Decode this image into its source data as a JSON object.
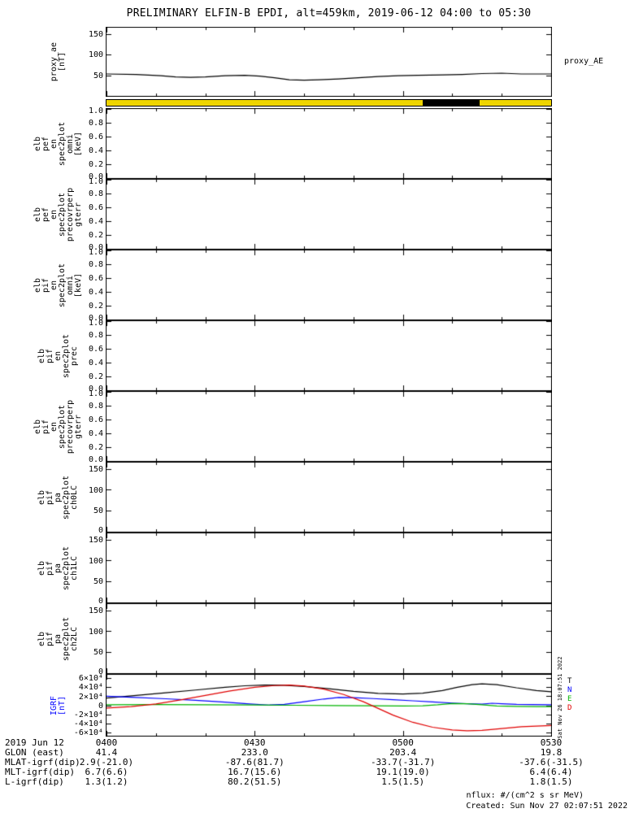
{
  "notes": {
    "nflux": "nflux: #/(cm^2 s sr MeV)",
    "created": "Created: Sun Nov 27 02:07:51 2022",
    "side": "Sat Nov 26 18:07:51 2022"
  },
  "footer": {
    "rows": [
      {
        "label": "2019 Jun 12",
        "values": [
          "0400",
          "0430",
          "0500",
          "0530"
        ]
      },
      {
        "label": "GLON (east)",
        "values": [
          "41.4",
          "233.0",
          "203.4",
          "19.8"
        ]
      },
      {
        "label": "MLAT-igrf(dip)",
        "values": [
          "2.9(-21.0)",
          "-87.6(81.7)",
          "-33.7(-31.7)",
          "-37.6(-31.5)"
        ]
      },
      {
        "label": "MLT-igrf(dip)",
        "values": [
          "6.7(6.6)",
          "16.7(15.6)",
          "19.1(19.0)",
          "6.4(6.4)"
        ]
      },
      {
        "label": "L-igrf(dip)",
        "values": [
          "1.3(1.2)",
          "80.2(51.5)",
          "1.5(1.5)",
          "1.8(1.5)"
        ]
      }
    ]
  },
  "chart_data": {
    "type": "line",
    "title": "PRELIMINARY ELFIN-B EPDI, alt=459km, 2019-06-12 04:00 to 05:30",
    "x_axis": {
      "unit": "minutes from 04:00",
      "range": [
        0,
        90
      ],
      "major_ticks": [
        {
          "t": 0,
          "label": "0400"
        },
        {
          "t": 30,
          "label": "0430"
        },
        {
          "t": 60,
          "label": "0500"
        },
        {
          "t": 90,
          "label": "0530"
        }
      ],
      "minor_step": 10
    },
    "panels": [
      {
        "id": "proxy-ae",
        "ylabel_lines": [
          "proxy_ae",
          "[nT]"
        ],
        "ylabel_color": "#000000",
        "ylim": [
          0,
          165
        ],
        "yticks": [
          {
            "v": 50,
            "label": "50"
          },
          {
            "v": 100,
            "label": "100"
          },
          {
            "v": 150,
            "label": "150"
          }
        ],
        "right_label": "proxy_AE",
        "series": [
          {
            "name": "proxy_AE",
            "color": "#000000",
            "points": [
              [
                0,
                53
              ],
              [
                6,
                52
              ],
              [
                11,
                49
              ],
              [
                14,
                46
              ],
              [
                17,
                45
              ],
              [
                20,
                46
              ],
              [
                24,
                49
              ],
              [
                28,
                50
              ],
              [
                31,
                48
              ],
              [
                34,
                44
              ],
              [
                37,
                39
              ],
              [
                40,
                38
              ],
              [
                43,
                39
              ],
              [
                47,
                41
              ],
              [
                51,
                44
              ],
              [
                55,
                47
              ],
              [
                59,
                49
              ],
              [
                63,
                50
              ],
              [
                68,
                51
              ],
              [
                72,
                52
              ],
              [
                76,
                54
              ],
              [
                80,
                55
              ],
              [
                84,
                53
              ],
              [
                90,
                53
              ]
            ]
          }
        ]
      },
      {
        "id": "status-bar",
        "kind": "strip",
        "fill": "#efd500",
        "segments": [
          {
            "start": 64,
            "end": 75.5,
            "color": "#000000"
          }
        ]
      },
      {
        "id": "elb-pef-en-omni",
        "ylabel_lines": [
          "elb",
          "pef",
          "en",
          "spec2plot",
          "omni",
          "[keV]"
        ],
        "ylim": [
          0,
          1
        ],
        "yticks": [
          {
            "v": 0,
            "label": "0.0"
          },
          {
            "v": 0.2,
            "label": "0.2"
          },
          {
            "v": 0.4,
            "label": "0.4"
          },
          {
            "v": 0.6,
            "label": "0.6"
          },
          {
            "v": 0.8,
            "label": "0.8"
          },
          {
            "v": 1,
            "label": "1.0"
          }
        ],
        "series": []
      },
      {
        "id": "elb-pef-en-precovrperp",
        "ylabel_lines": [
          "elb",
          "pef",
          "en",
          "spec2plot",
          "precovrperp",
          "gterr"
        ],
        "ylim": [
          0,
          1
        ],
        "yticks": [
          {
            "v": 0,
            "label": "0.0"
          },
          {
            "v": 0.2,
            "label": "0.2"
          },
          {
            "v": 0.4,
            "label": "0.4"
          },
          {
            "v": 0.6,
            "label": "0.6"
          },
          {
            "v": 0.8,
            "label": "0.8"
          },
          {
            "v": 1,
            "label": "1.0"
          }
        ],
        "series": []
      },
      {
        "id": "elb-pif-en-omni",
        "ylabel_lines": [
          "elb",
          "pif",
          "en",
          "spec2plot",
          "omni",
          "[keV]"
        ],
        "ylim": [
          0,
          1
        ],
        "yticks": [
          {
            "v": 0,
            "label": "0.0"
          },
          {
            "v": 0.2,
            "label": "0.2"
          },
          {
            "v": 0.4,
            "label": "0.4"
          },
          {
            "v": 0.6,
            "label": "0.6"
          },
          {
            "v": 0.8,
            "label": "0.8"
          },
          {
            "v": 1,
            "label": "1.0"
          }
        ],
        "series": []
      },
      {
        "id": "elb-pif-en-prec",
        "ylabel_lines": [
          "elb",
          "pif",
          "en",
          "spec2plot",
          "prec"
        ],
        "ylim": [
          0,
          1
        ],
        "yticks": [
          {
            "v": 0,
            "label": "0.0"
          },
          {
            "v": 0.2,
            "label": "0.2"
          },
          {
            "v": 0.4,
            "label": "0.4"
          },
          {
            "v": 0.6,
            "label": "0.6"
          },
          {
            "v": 0.8,
            "label": "0.8"
          },
          {
            "v": 1,
            "label": "1.0"
          }
        ],
        "series": []
      },
      {
        "id": "elb-pif-en-precovrperp",
        "ylabel_lines": [
          "elb",
          "pif",
          "en",
          "spec2plot",
          "precovrperp",
          "gterr"
        ],
        "ylim": [
          0,
          1
        ],
        "yticks": [
          {
            "v": 0,
            "label": "0.0"
          },
          {
            "v": 0.2,
            "label": "0.2"
          },
          {
            "v": 0.4,
            "label": "0.4"
          },
          {
            "v": 0.6,
            "label": "0.6"
          },
          {
            "v": 0.8,
            "label": "0.8"
          },
          {
            "v": 1,
            "label": "1.0"
          }
        ],
        "series": []
      },
      {
        "id": "elb-pif-pa-ch0lc",
        "ylabel_lines": [
          "elb",
          "pif",
          "pa",
          "spec2plot",
          "ch0LC"
        ],
        "ylim": [
          0,
          165
        ],
        "yticks": [
          {
            "v": 0,
            "label": "0"
          },
          {
            "v": 50,
            "label": "50"
          },
          {
            "v": 100,
            "label": "100"
          },
          {
            "v": 150,
            "label": "150"
          }
        ],
        "series": []
      },
      {
        "id": "elb-pif-pa-ch1lc",
        "ylabel_lines": [
          "elb",
          "pif",
          "pa",
          "spec2plot",
          "ch1LC"
        ],
        "ylim": [
          0,
          165
        ],
        "yticks": [
          {
            "v": 0,
            "label": "0"
          },
          {
            "v": 50,
            "label": "50"
          },
          {
            "v": 100,
            "label": "100"
          },
          {
            "v": 150,
            "label": "150"
          }
        ],
        "series": []
      },
      {
        "id": "elb-pif-pa-ch2lc",
        "ylabel_lines": [
          "elb",
          "pif",
          "pa",
          "spec2plot",
          "ch2LC"
        ],
        "ylim": [
          0,
          165
        ],
        "yticks": [
          {
            "v": 0,
            "label": "0"
          },
          {
            "v": 50,
            "label": "50"
          },
          {
            "v": 100,
            "label": "100"
          },
          {
            "v": 150,
            "label": "150"
          }
        ],
        "series": []
      },
      {
        "id": "igrf",
        "ylabel_lines": [
          "IGRF",
          "[nT]"
        ],
        "ylabel_color": "#0000ff",
        "ylim": [
          -68000,
          68000
        ],
        "yticks": [
          {
            "v": -60000,
            "label": "-6×10⁴"
          },
          {
            "v": -40000,
            "label": "-4×10⁴"
          },
          {
            "v": -20000,
            "label": "-2×10⁴"
          },
          {
            "v": 0,
            "label": "0"
          },
          {
            "v": 20000,
            "label": "2×10⁴"
          },
          {
            "v": 40000,
            "label": "4×10⁴"
          },
          {
            "v": 60000,
            "label": "6×10⁴"
          }
        ],
        "legend": [
          {
            "label": "T",
            "color": "#000000"
          },
          {
            "label": "N",
            "color": "#0000ff"
          },
          {
            "label": "E",
            "color": "#00b400"
          },
          {
            "label": "D",
            "color": "#e00000"
          }
        ],
        "series": [
          {
            "name": "T",
            "color": "#000000",
            "points": [
              [
                0,
                16000
              ],
              [
                6,
                22000
              ],
              [
                12,
                28000
              ],
              [
                18,
                34000
              ],
              [
                24,
                40000
              ],
              [
                28,
                43500
              ],
              [
                32,
                45000
              ],
              [
                36,
                44500
              ],
              [
                40,
                42000
              ],
              [
                45,
                37000
              ],
              [
                50,
                31000
              ],
              [
                55,
                26500
              ],
              [
                60,
                25000
              ],
              [
                64,
                27000
              ],
              [
                68,
                33000
              ],
              [
                71,
                40000
              ],
              [
                74,
                46000
              ],
              [
                76,
                48000
              ],
              [
                79,
                46000
              ],
              [
                83,
                39000
              ],
              [
                87,
                33000
              ],
              [
                90,
                30000
              ]
            ]
          },
          {
            "name": "N",
            "color": "#0000ff",
            "points": [
              [
                0,
                20000
              ],
              [
                6,
                17500
              ],
              [
                12,
                14500
              ],
              [
                18,
                11000
              ],
              [
                24,
                7000
              ],
              [
                29,
                3000
              ],
              [
                33,
                500
              ],
              [
                36,
                2000
              ],
              [
                40,
                8000
              ],
              [
                44,
                14000
              ],
              [
                47,
                17500
              ],
              [
                50,
                17000
              ],
              [
                54,
                15000
              ],
              [
                58,
                12500
              ],
              [
                62,
                10000
              ],
              [
                66,
                7500
              ],
              [
                70,
                5000
              ],
              [
                73,
                3500
              ],
              [
                76,
                2500
              ],
              [
                78,
                4500
              ],
              [
                80,
                3500
              ],
              [
                83,
                2000
              ],
              [
                86,
                1500
              ],
              [
                90,
                1000
              ]
            ]
          },
          {
            "name": "E",
            "color": "#00b400",
            "points": [
              [
                0,
                1000
              ],
              [
                10,
                1500
              ],
              [
                20,
                1000
              ],
              [
                30,
                500
              ],
              [
                38,
                0
              ],
              [
                46,
                -500
              ],
              [
                54,
                -1000
              ],
              [
                60,
                -1500
              ],
              [
                64,
                -1200
              ],
              [
                67,
                1000
              ],
              [
                70,
                4000
              ],
              [
                73,
                3500
              ],
              [
                76,
                1000
              ],
              [
                79,
                -1500
              ],
              [
                83,
                -2500
              ],
              [
                87,
                -2800
              ],
              [
                90,
                -3000
              ]
            ]
          },
          {
            "name": "D",
            "color": "#e00000",
            "points": [
              [
                0,
                -6000
              ],
              [
                5,
                -3000
              ],
              [
                10,
                3000
              ],
              [
                15,
                12000
              ],
              [
                20,
                22000
              ],
              [
                25,
                32000
              ],
              [
                30,
                40000
              ],
              [
                34,
                44000
              ],
              [
                37,
                45000
              ],
              [
                40,
                43000
              ],
              [
                44,
                36000
              ],
              [
                48,
                24000
              ],
              [
                52,
                8000
              ],
              [
                55,
                -7000
              ],
              [
                58,
                -22000
              ],
              [
                62,
                -38000
              ],
              [
                66,
                -49000
              ],
              [
                70,
                -55000
              ],
              [
                73,
                -57000
              ],
              [
                76,
                -56000
              ],
              [
                80,
                -52000
              ],
              [
                84,
                -48000
              ],
              [
                88,
                -46000
              ],
              [
                90,
                -45000
              ]
            ]
          }
        ]
      }
    ]
  }
}
